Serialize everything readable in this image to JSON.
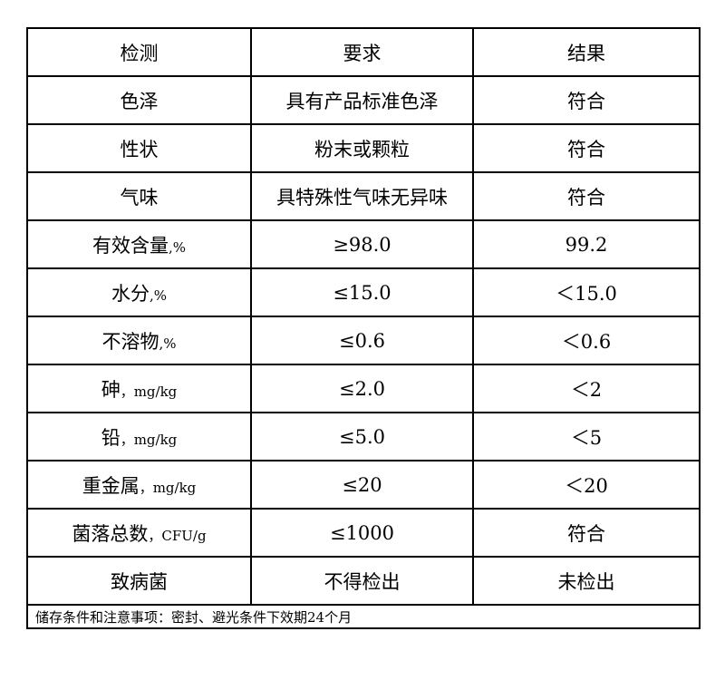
{
  "headers": [
    "检测",
    "要求",
    "结果"
  ],
  "rows": [
    {
      "item": "色泽",
      "unit": "",
      "requirement": "具有产品标准色泽",
      "result": "符合"
    },
    {
      "item": "性状",
      "unit": "",
      "requirement": "粉末或颗粒",
      "result": "符合"
    },
    {
      "item": "气味",
      "unit": "",
      "requirement": "具特殊性气味无异味",
      "result": "符合"
    },
    {
      "item": "有效含量",
      "unit": ",%",
      "requirement": "≥98.0",
      "result": "99.2"
    },
    {
      "item": "水分",
      "unit": ",%",
      "requirement": "≤15.0",
      "result": "＜15.0"
    },
    {
      "item": "不溶物",
      "unit": ",%",
      "requirement": "≤0.6",
      "result": "＜0.6"
    },
    {
      "item": "砷",
      "unit": "，mg/kg",
      "requirement": "≤2.0",
      "result": "＜2"
    },
    {
      "item": "铅",
      "unit": "，mg/kg",
      "requirement": "≤5.0",
      "result": "＜5"
    },
    {
      "item": "重金属",
      "unit": "，mg/kg",
      "requirement": "≤20",
      "result": "＜20"
    },
    {
      "item": "菌落总数",
      "unit": "，CFU/g",
      "requirement": "≤1000",
      "result": "符合"
    },
    {
      "item": "致病菌",
      "unit": "",
      "requirement": "不得检出",
      "result": "未检出"
    }
  ],
  "footer_note": "储存条件和注意事项：密封、避光条件下效期24个月"
}
